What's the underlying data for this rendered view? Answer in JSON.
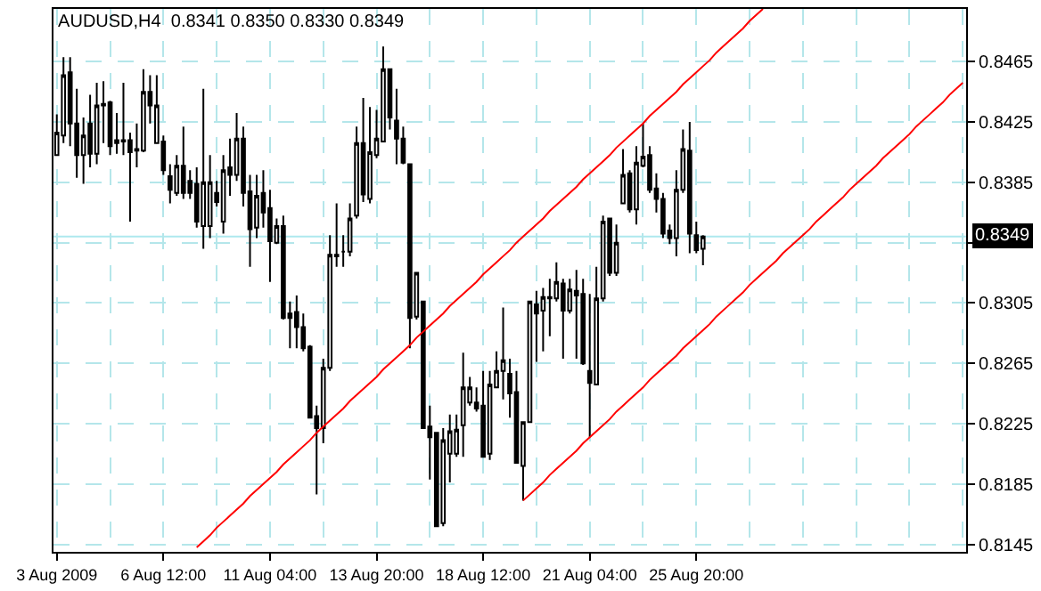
{
  "chart_data": {
    "type": "candlestick",
    "title": "AUDUSD,H4  0.8341 0.8350 0.8330 0.8349",
    "categories": [
      "3 Aug 2009",
      null,
      null,
      null,
      null,
      null,
      null,
      null,
      null,
      null,
      null,
      null,
      null,
      null,
      null,
      null,
      "6 Aug 12:00",
      null,
      null,
      null,
      null,
      null,
      null,
      null,
      null,
      null,
      null,
      null,
      null,
      null,
      null,
      null,
      "11 Aug 04:00",
      null,
      null,
      null,
      null,
      null,
      null,
      null,
      null,
      null,
      null,
      null,
      null,
      null,
      null,
      null,
      "13 Aug 20:00",
      null,
      null,
      null,
      null,
      null,
      null,
      null,
      null,
      null,
      null,
      null,
      null,
      null,
      null,
      null,
      "18 Aug 12:00",
      null,
      null,
      null,
      null,
      null,
      null,
      null,
      null,
      null,
      null,
      null,
      null,
      null,
      null,
      null,
      "21 Aug 04:00",
      null,
      null,
      null,
      null,
      null,
      null,
      null,
      null,
      null,
      null,
      null,
      null,
      null,
      null,
      null,
      "25 Aug 20:00",
      null,
      null,
      null,
      null,
      null,
      null,
      null,
      null,
      null,
      null,
      null,
      null,
      null,
      null,
      null,
      null,
      null,
      null,
      null,
      null,
      null,
      null,
      null,
      null,
      null,
      null,
      null,
      null,
      null,
      null,
      null,
      null,
      null,
      null,
      null,
      null,
      null,
      null,
      null,
      null
    ],
    "series": [
      {
        "color": "#000000",
        "ohlc": [
          [
            0.8403,
            0.843,
            0.8403,
            0.8418
          ],
          [
            0.8416,
            0.8468,
            0.8411,
            0.8456
          ],
          [
            0.8458,
            0.8468,
            0.8409,
            0.8424
          ],
          [
            0.8424,
            0.8447,
            0.8388,
            0.8403
          ],
          [
            0.8403,
            0.8428,
            0.8384,
            0.8416
          ],
          [
            0.8424,
            0.8443,
            0.8395,
            0.8404
          ],
          [
            0.8404,
            0.8451,
            0.8397,
            0.8436
          ],
          [
            0.8437,
            0.8452,
            0.8411,
            0.8436
          ],
          [
            0.8438,
            0.8439,
            0.8403,
            0.8409
          ],
          [
            0.8413,
            0.8431,
            0.8404,
            0.8411
          ],
          [
            0.8412,
            0.8451,
            0.8403,
            0.8413
          ],
          [
            0.8413,
            0.8418,
            0.8359,
            0.8405
          ],
          [
            0.8406,
            0.8424,
            0.8395,
            0.8407
          ],
          [
            0.8406,
            0.846,
            0.8405,
            0.8445
          ],
          [
            0.8445,
            0.8456,
            0.8424,
            0.8436
          ],
          [
            0.8411,
            0.8456,
            0.8411,
            0.8436
          ],
          [
            0.8412,
            0.8416,
            0.839,
            0.8393
          ],
          [
            0.8389,
            0.8397,
            0.8371,
            0.838
          ],
          [
            0.8378,
            0.8403,
            0.8376,
            0.8396
          ],
          [
            0.8396,
            0.8422,
            0.8374,
            0.8378
          ],
          [
            0.8386,
            0.8393,
            0.8374,
            0.8378
          ],
          [
            0.8384,
            0.8395,
            0.8355,
            0.8359
          ],
          [
            0.8356,
            0.8447,
            0.8341,
            0.8385
          ],
          [
            0.8356,
            0.8403,
            0.8348,
            0.8385
          ],
          [
            0.8378,
            0.8386,
            0.8369,
            0.8372
          ],
          [
            0.8359,
            0.8403,
            0.8351,
            0.8393
          ],
          [
            0.8395,
            0.8414,
            0.8376,
            0.839
          ],
          [
            0.839,
            0.8431,
            0.8386,
            0.8414
          ],
          [
            0.8414,
            0.8422,
            0.8369,
            0.8378
          ],
          [
            0.8379,
            0.839,
            0.8329,
            0.8354
          ],
          [
            0.8355,
            0.839,
            0.8348,
            0.8376
          ],
          [
            0.8378,
            0.8393,
            0.8355,
            0.8365
          ],
          [
            0.8368,
            0.838,
            0.8319,
            0.8346
          ],
          [
            0.8345,
            0.8361,
            0.8344,
            0.8356
          ],
          [
            0.8356,
            0.8363,
            0.8294,
            0.8295
          ],
          [
            0.8298,
            0.8306,
            0.8275,
            0.8295
          ],
          [
            0.8299,
            0.831,
            0.8275,
            0.8289
          ],
          [
            0.8289,
            0.8298,
            0.8273,
            0.8275
          ],
          [
            0.8276,
            0.8277,
            0.8229,
            0.8229
          ],
          [
            0.823,
            0.8237,
            0.8178,
            0.8222
          ],
          [
            0.8222,
            0.8268,
            0.8212,
            0.8262
          ],
          [
            0.8262,
            0.835,
            0.826,
            0.8337
          ],
          [
            0.8336,
            0.8371,
            0.8329,
            0.8337
          ],
          [
            0.8339,
            0.835,
            0.8329,
            0.8339
          ],
          [
            0.8339,
            0.8371,
            0.8336,
            0.8361
          ],
          [
            0.8363,
            0.8422,
            0.8361,
            0.8411
          ],
          [
            0.8411,
            0.8441,
            0.8372,
            0.8377
          ],
          [
            0.8374,
            0.8435,
            0.8371,
            0.8405
          ],
          [
            0.8403,
            0.8433,
            0.8401,
            0.8414
          ],
          [
            0.8412,
            0.8475,
            0.8412,
            0.846
          ],
          [
            0.846,
            0.846,
            0.842,
            0.8428
          ],
          [
            0.8426,
            0.8447,
            0.8397,
            0.8414
          ],
          [
            0.8414,
            0.8422,
            0.8397,
            0.8398
          ],
          [
            0.8397,
            0.8397,
            0.8275,
            0.8295
          ],
          [
            0.8296,
            0.8325,
            0.8294,
            0.8325
          ],
          [
            0.8306,
            0.8306,
            0.8222,
            0.8222
          ],
          [
            0.8223,
            0.8237,
            0.8188,
            0.8216
          ],
          [
            0.8219,
            0.8219,
            0.8157,
            0.8157
          ],
          [
            0.8159,
            0.8222,
            0.8157,
            0.8214
          ],
          [
            0.8205,
            0.8231,
            0.8186,
            0.822
          ],
          [
            0.8205,
            0.8231,
            0.8203,
            0.8221
          ],
          [
            0.8224,
            0.8272,
            0.8203,
            0.8249
          ],
          [
            0.8239,
            0.8256,
            0.8237,
            0.8249
          ],
          [
            0.8239,
            0.8249,
            0.8233,
            0.8235
          ],
          [
            0.8237,
            0.826,
            0.8203,
            0.8203
          ],
          [
            0.8205,
            0.826,
            0.8201,
            0.8251
          ],
          [
            0.8249,
            0.8273,
            0.8249,
            0.826
          ],
          [
            0.826,
            0.8302,
            0.8241,
            0.8267
          ],
          [
            0.8258,
            0.8268,
            0.8229,
            0.8245
          ],
          [
            0.8246,
            0.826,
            0.8199,
            0.8199
          ],
          [
            0.8197,
            0.8226,
            0.8174,
            0.8226
          ],
          [
            0.8226,
            0.8306,
            0.8226,
            0.8306
          ],
          [
            0.8304,
            0.8313,
            0.8266,
            0.8298
          ],
          [
            0.83,
            0.8315,
            0.8273,
            0.8309
          ],
          [
            0.8309,
            0.8321,
            0.8283,
            0.8308
          ],
          [
            0.8308,
            0.8332,
            0.8306,
            0.8319
          ],
          [
            0.8318,
            0.8321,
            0.8268,
            0.83
          ],
          [
            0.83,
            0.8321,
            0.8298,
            0.8314
          ],
          [
            0.8313,
            0.8327,
            0.8268,
            0.831
          ],
          [
            0.8311,
            0.8321,
            0.8264,
            0.8265
          ],
          [
            0.826,
            0.8311,
            0.8216,
            0.8252
          ],
          [
            0.8251,
            0.8329,
            0.8251,
            0.8308
          ],
          [
            0.8308,
            0.8363,
            0.8306,
            0.8359
          ],
          [
            0.8361,
            0.8361,
            0.8323,
            0.8325
          ],
          [
            0.8325,
            0.8357,
            0.8323,
            0.8345
          ],
          [
            0.8371,
            0.8407,
            0.8371,
            0.839
          ],
          [
            0.8391,
            0.8393,
            0.8365,
            0.8367
          ],
          [
            0.8367,
            0.8409,
            0.8357,
            0.8398
          ],
          [
            0.8396,
            0.8424,
            0.8395,
            0.8402
          ],
          [
            0.8403,
            0.8409,
            0.8378,
            0.838
          ],
          [
            0.8381,
            0.8391,
            0.8365,
            0.8374
          ],
          [
            0.8374,
            0.8378,
            0.8348,
            0.8351
          ],
          [
            0.8353,
            0.8357,
            0.8344,
            0.8348
          ],
          [
            0.8348,
            0.8393,
            0.8336,
            0.838
          ],
          [
            0.838,
            0.842,
            0.8378,
            0.8407
          ],
          [
            0.8406,
            0.8425,
            0.8338,
            0.8351
          ],
          [
            0.835,
            0.8359,
            0.8338,
            0.834
          ],
          [
            0.8341,
            0.835,
            0.833,
            0.8349
          ],
          null,
          null,
          null,
          null,
          null,
          null,
          null,
          null,
          null,
          null,
          null,
          null,
          null,
          null,
          null,
          null,
          null,
          null,
          null,
          null,
          null,
          null,
          null,
          null,
          null,
          null,
          null,
          null,
          null,
          null,
          null,
          null,
          null,
          null,
          null,
          null,
          null,
          null,
          null
        ]
      },
      {
        "type": "line",
        "color": "#ff0000",
        "values": [
          null,
          null,
          null,
          null,
          null,
          null,
          null,
          null,
          null,
          null,
          null,
          null,
          null,
          null,
          null,
          null,
          null,
          null,
          null,
          null,
          null,
          0.8143,
          0.8147,
          0.8151,
          0.8156,
          0.816,
          0.8164,
          0.8168,
          0.8172,
          0.8177,
          0.8181,
          0.8185,
          0.8189,
          0.8193,
          0.8198,
          0.8202,
          0.8206,
          0.821,
          0.8214,
          0.8219,
          0.8223,
          0.8227,
          0.8231,
          0.8235,
          0.824,
          0.8244,
          0.8248,
          0.8252,
          0.8256,
          0.8261,
          0.8265,
          0.8269,
          0.8273,
          0.8277,
          0.8282,
          0.8286,
          0.829,
          0.8294,
          0.8298,
          0.8303,
          0.8307,
          0.8311,
          0.8315,
          0.8319,
          0.8324,
          0.8328,
          0.8332,
          0.8336,
          0.834,
          0.8345,
          0.8349,
          0.8353,
          0.8357,
          0.8361,
          0.8366,
          0.837,
          0.8374,
          0.8378,
          0.8382,
          0.8387,
          0.8391,
          0.8395,
          0.8399,
          0.8403,
          0.8408,
          0.8412,
          0.8416,
          0.842,
          0.8424,
          0.8429,
          0.8433,
          0.8437,
          0.8441,
          0.8445,
          0.845,
          0.8454,
          0.8458,
          0.8462,
          0.8466,
          0.8471,
          0.8475,
          0.8479,
          0.8483,
          0.8487,
          0.8492,
          0.8496,
          0.85,
          null,
          null,
          null,
          null,
          null,
          null,
          null,
          null,
          null,
          null,
          null,
          null,
          null,
          null,
          null,
          null,
          null,
          null,
          null,
          null,
          null,
          null,
          null,
          null,
          null,
          null,
          null,
          null,
          null,
          null
        ]
      },
      {
        "type": "line",
        "color": "#ff0000",
        "values": [
          null,
          null,
          null,
          null,
          null,
          null,
          null,
          null,
          null,
          null,
          null,
          null,
          null,
          null,
          null,
          null,
          null,
          null,
          null,
          null,
          null,
          null,
          null,
          null,
          null,
          null,
          null,
          null,
          null,
          null,
          null,
          null,
          null,
          null,
          null,
          null,
          null,
          null,
          null,
          null,
          null,
          null,
          null,
          null,
          null,
          null,
          null,
          null,
          null,
          null,
          null,
          null,
          null,
          null,
          null,
          null,
          null,
          null,
          null,
          null,
          null,
          null,
          null,
          null,
          null,
          null,
          null,
          null,
          null,
          null,
          0.8174,
          0.8178,
          0.8182,
          0.8186,
          0.8191,
          0.8195,
          0.8199,
          0.8203,
          0.8207,
          0.8212,
          0.8216,
          0.822,
          0.8224,
          0.8228,
          0.8233,
          0.8237,
          0.8241,
          0.8245,
          0.8249,
          0.8254,
          0.8258,
          0.8262,
          0.8266,
          0.827,
          0.8275,
          0.8279,
          0.8283,
          0.8287,
          0.8291,
          0.8296,
          0.83,
          0.8304,
          0.8308,
          0.8312,
          0.8317,
          0.8321,
          0.8325,
          0.8329,
          0.8333,
          0.8338,
          0.8342,
          0.8346,
          0.835,
          0.8354,
          0.8359,
          0.8363,
          0.8367,
          0.8371,
          0.8375,
          0.838,
          0.8384,
          0.8388,
          0.8392,
          0.8396,
          0.8401,
          0.8405,
          0.8409,
          0.8413,
          0.8417,
          0.8422,
          0.8426,
          0.843,
          0.8434,
          0.8438,
          0.8443,
          0.8447,
          0.8451
        ]
      }
    ],
    "ylim": [
      0.814,
      0.85
    ],
    "yticks": [
      0.8465,
      0.8425,
      0.8385,
      {
        "value": 0.8345,
        "label": null
      },
      0.8305,
      0.8265,
      0.8225,
      0.8185,
      0.8145
    ],
    "ref_lines": [
      {
        "axis": "y",
        "value": 0.8349,
        "label": "0.8349",
        "color": "#aee8ee"
      }
    ],
    "grid": true,
    "marker": "none",
    "line_style": "solid"
  }
}
